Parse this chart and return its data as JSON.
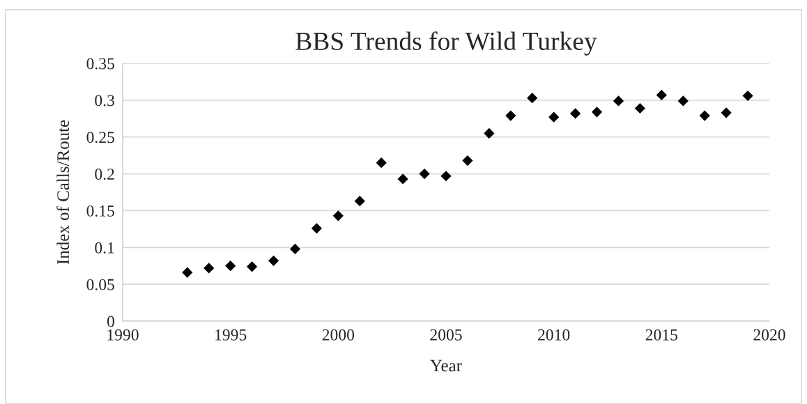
{
  "chart_data": {
    "type": "scatter",
    "title": "BBS Trends for Wild Turkey",
    "xlabel": "Year",
    "ylabel": "Index of Calls/Route",
    "x": [
      1993,
      1994,
      1995,
      1996,
      1997,
      1998,
      1999,
      2000,
      2001,
      2002,
      2003,
      2004,
      2005,
      2006,
      2007,
      2008,
      2009,
      2010,
      2011,
      2012,
      2013,
      2014,
      2015,
      2016,
      2017,
      2018,
      2019
    ],
    "series": [
      {
        "color": "#000000",
        "values": [
          0.066,
          0.072,
          0.075,
          0.074,
          0.082,
          0.098,
          0.126,
          0.143,
          0.163,
          0.215,
          0.193,
          0.2,
          0.197,
          0.218,
          0.255,
          0.279,
          0.303,
          0.277,
          0.282,
          0.284,
          0.299,
          0.289,
          0.307,
          0.299,
          0.279,
          0.283,
          0.306
        ]
      }
    ],
    "xlim": [
      1990,
      2020
    ],
    "xticks": [
      1990,
      1995,
      2000,
      2005,
      2010,
      2015,
      2020
    ],
    "ylim": [
      0,
      0.35
    ],
    "yticks": [
      {
        "value": 0,
        "label": "0"
      },
      {
        "value": 0.05,
        "label": "0.05"
      },
      {
        "value": 0.1,
        "label": "0.1"
      },
      {
        "value": 0.15,
        "label": "0.15"
      },
      {
        "value": 0.2,
        "label": "0.2"
      },
      {
        "value": 0.25,
        "label": "0.25"
      },
      {
        "value": 0.3,
        "label": "0.3"
      },
      {
        "value": 0.35,
        "label": "0.35"
      }
    ],
    "grid": "y",
    "marker": "diamond"
  }
}
